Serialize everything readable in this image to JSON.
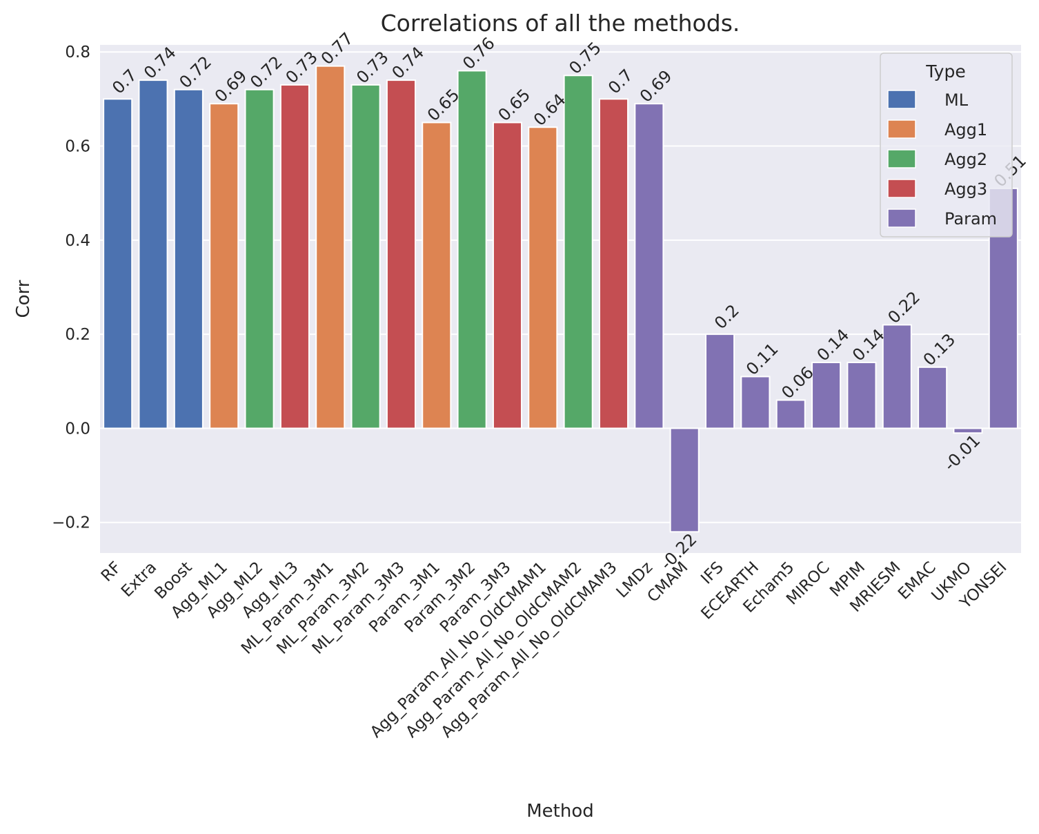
{
  "chart_data": {
    "type": "bar",
    "title": "Correlations of all the methods.",
    "xlabel": "Method",
    "ylabel": "Corr",
    "ylim": [
      -0.265,
      0.815
    ],
    "yticks": [
      -0.2,
      0.0,
      0.2,
      0.4,
      0.6,
      0.8
    ],
    "ytick_labels": [
      "−0.2",
      "0.0",
      "0.2",
      "0.4",
      "0.6",
      "0.8"
    ],
    "grid": true,
    "legend": {
      "title": "Type",
      "placement": "top-right",
      "entries": [
        {
          "name": "ML",
          "color": "#4c72b0"
        },
        {
          "name": "Agg1",
          "color": "#dd8452"
        },
        {
          "name": "Agg2",
          "color": "#55a868"
        },
        {
          "name": "Agg3",
          "color": "#c44e52"
        },
        {
          "name": "Param",
          "color": "#8172b3"
        }
      ]
    },
    "categories": [
      "RF",
      "Extra",
      "Boost",
      "Agg_ML1",
      "Agg_ML2",
      "Agg_ML3",
      "ML_Param_3M1",
      "ML_Param_3M2",
      "ML_Param_3M3",
      "Param_3M1",
      "Param_3M2",
      "Param_3M3",
      "Agg_Param_All_No_OldCMAM1",
      "Agg_Param_All_No_OldCMAM2",
      "Agg_Param_All_No_OldCMAM3",
      "LMDz",
      "CMAM",
      "IFS",
      "ECEARTH",
      "Echam5",
      "MIROC",
      "MPIM",
      "MRIESM",
      "EMAC",
      "UKMO",
      "YONSEI"
    ],
    "values": [
      0.7,
      0.74,
      0.72,
      0.69,
      0.72,
      0.73,
      0.77,
      0.73,
      0.74,
      0.65,
      0.76,
      0.65,
      0.64,
      0.75,
      0.7,
      0.69,
      -0.22,
      0.2,
      0.11,
      0.06,
      0.14,
      0.14,
      0.22,
      0.13,
      -0.01,
      0.51
    ],
    "value_labels": [
      "0.7",
      "0.74",
      "0.72",
      "0.69",
      "0.72",
      "0.73",
      "0.77",
      "0.73",
      "0.74",
      "0.65",
      "0.76",
      "0.65",
      "0.64",
      "0.75",
      "0.7",
      "0.69",
      "-0.22",
      "0.2",
      "0.11",
      "0.06",
      "0.14",
      "0.14",
      "0.22",
      "0.13",
      "-0.01",
      "0.51"
    ],
    "types": [
      "ML",
      "ML",
      "ML",
      "Agg1",
      "Agg2",
      "Agg3",
      "Agg1",
      "Agg2",
      "Agg3",
      "Agg1",
      "Agg2",
      "Agg3",
      "Agg1",
      "Agg2",
      "Agg3",
      "Param",
      "Param",
      "Param",
      "Param",
      "Param",
      "Param",
      "Param",
      "Param",
      "Param",
      "Param",
      "Param"
    ],
    "colors": {
      "background": "#eaeaf2",
      "grid": "#ffffff"
    }
  }
}
